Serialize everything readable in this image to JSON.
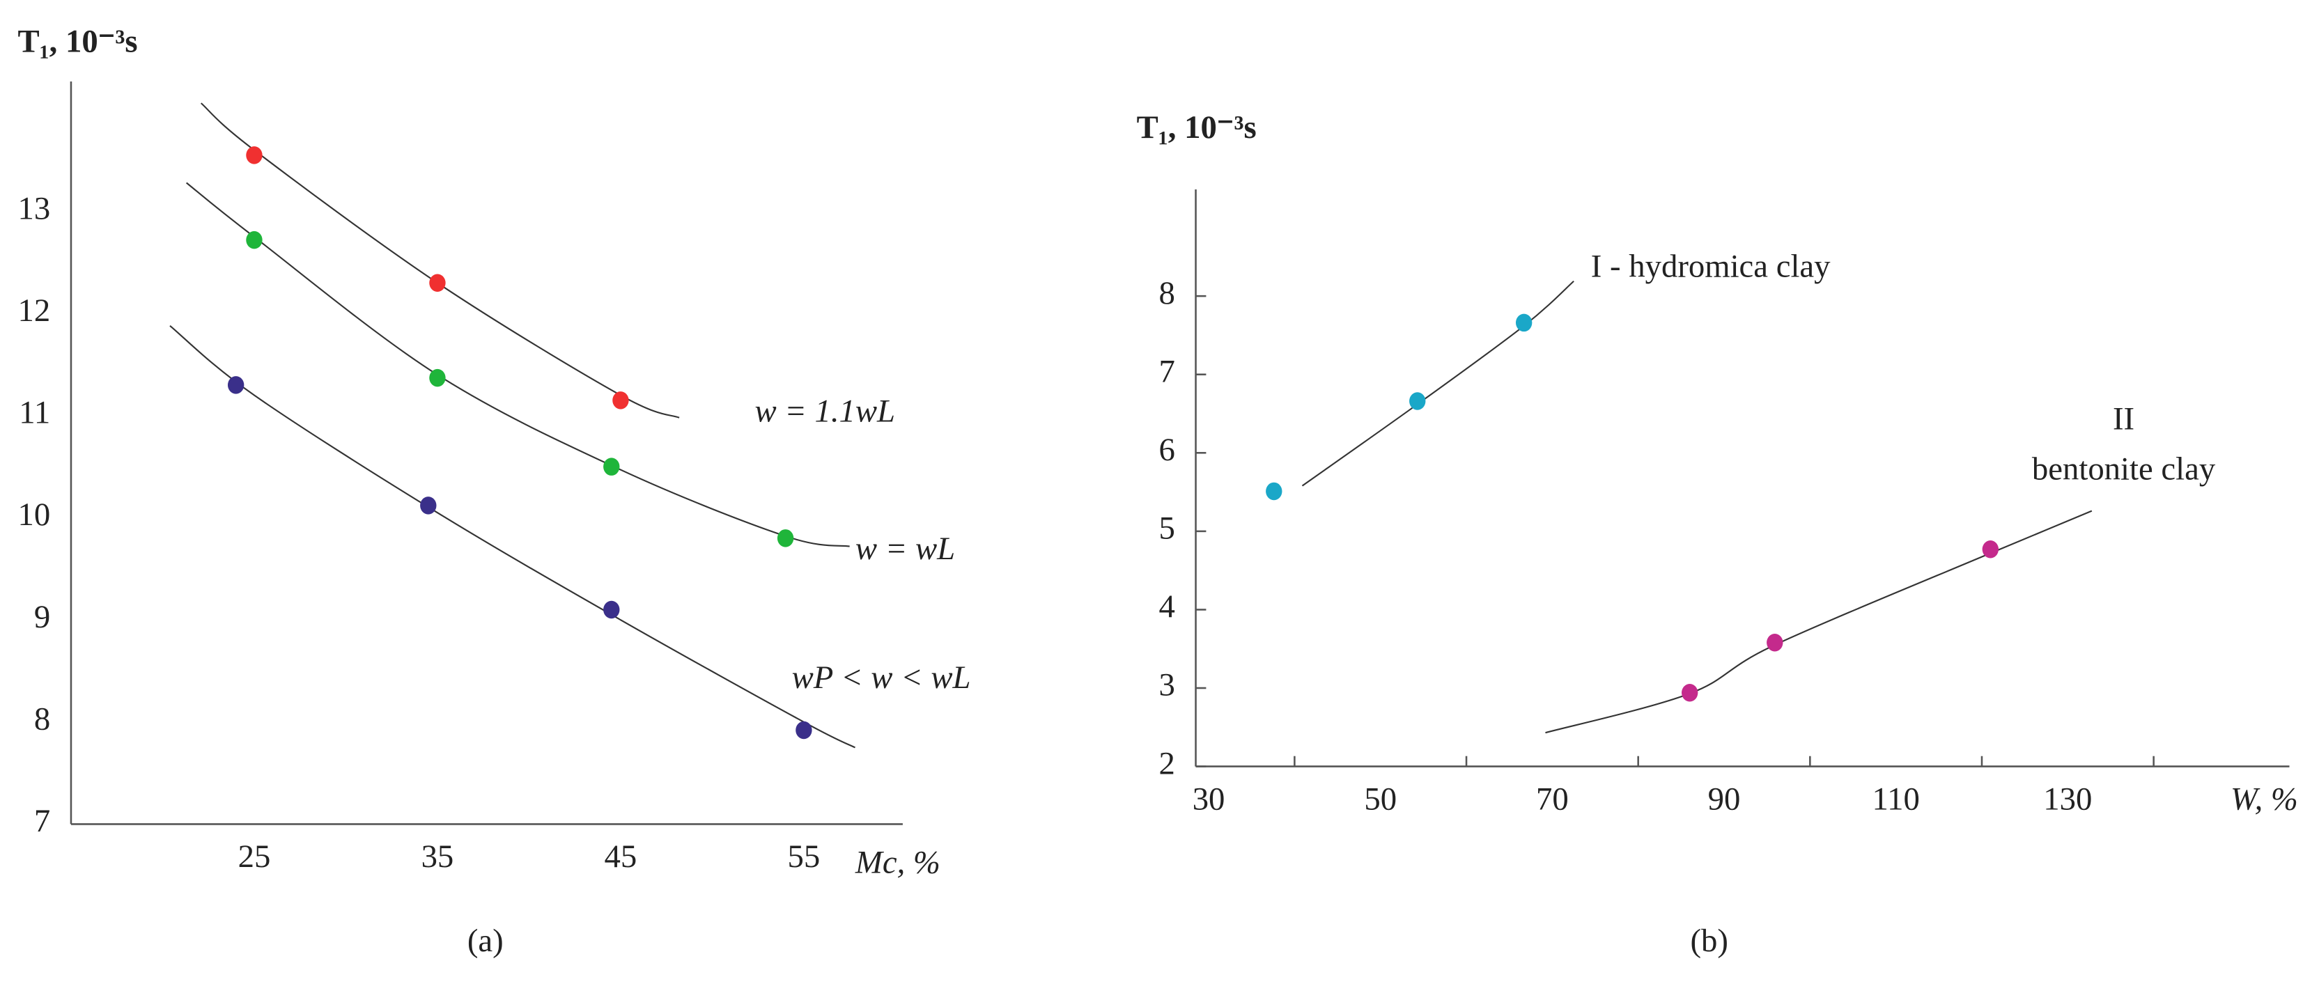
{
  "chart_data": [
    {
      "type": "scatter",
      "panel_label": "(a)",
      "y_label": "T₁, 10⁻³s",
      "x_label": "Mc, %",
      "xlim": [
        15,
        60.4
      ],
      "ylim": [
        7,
        14.2
      ],
      "xticks": [
        25,
        35,
        45,
        55
      ],
      "yticks": [
        7,
        8,
        9,
        10,
        11,
        12,
        13
      ],
      "tick_marks": false,
      "series": [
        {
          "name": "w = 1.1wL",
          "color": "#f03030",
          "x": [
            25,
            35,
            45
          ],
          "values": [
            13.55,
            12.3,
            11.15
          ],
          "line": {
            "x": [
              22.1,
              25,
              35,
              45,
              48.2
            ],
            "y": [
              14.06,
              13.6,
              12.3,
              11.2,
              10.98
            ]
          }
        },
        {
          "name": "w = wL",
          "color": "#1fb53a",
          "x": [
            25,
            35,
            44.5,
            54
          ],
          "values": [
            12.72,
            11.37,
            10.5,
            9.8
          ],
          "line": {
            "x": [
              21.3,
              25,
              35,
              45,
              54,
              57.5
            ],
            "y": [
              13.28,
              12.75,
              11.4,
              10.47,
              9.82,
              9.72
            ]
          }
        },
        {
          "name": "wP < w < wL",
          "color": "#3a2f8a",
          "x": [
            24,
            34.5,
            44.5,
            55
          ],
          "values": [
            11.3,
            10.12,
            9.1,
            7.92
          ],
          "line": {
            "x": [
              20.4,
              25,
              35,
              45,
              55,
              57.8
            ],
            "y": [
              11.88,
              11.2,
              10.05,
              9.0,
              8.0,
              7.75
            ]
          }
        }
      ]
    },
    {
      "type": "scatter",
      "panel_label": "(b)",
      "y_label": "T₁, 10⁻³s",
      "x_label": "W, %",
      "xlim": [
        28.5,
        155.8
      ],
      "ylim": [
        2,
        9.36
      ],
      "xticks": [
        30,
        50,
        70,
        90,
        110,
        130
      ],
      "xtick_marks": [
        40,
        60,
        80,
        100,
        120,
        140
      ],
      "yticks": [
        2,
        3,
        4,
        5,
        6,
        7,
        8
      ],
      "tick_marks": true,
      "series": [
        {
          "name": "I - hydromica clay",
          "color": "#1aa7c8",
          "x": [
            37.6,
            54.3,
            66.7
          ],
          "values": [
            5.51,
            6.66,
            7.66
          ],
          "line": {
            "x": [
              40.9,
              54.3,
              66.7,
              72.5
            ],
            "y": [
              5.58,
              6.62,
              7.62,
              8.19
            ]
          }
        },
        {
          "name": "II",
          "subname": "bentonite clay",
          "color": "#c42a8c",
          "x": [
            86.0,
            95.9,
            121.0
          ],
          "values": [
            2.94,
            3.58,
            4.77
          ],
          "line": {
            "x": [
              69.2,
              86.0,
              95.9,
              121.0,
              132.8
            ],
            "y": [
              2.43,
              2.93,
              3.55,
              4.72,
              5.26
            ]
          }
        }
      ]
    }
  ]
}
